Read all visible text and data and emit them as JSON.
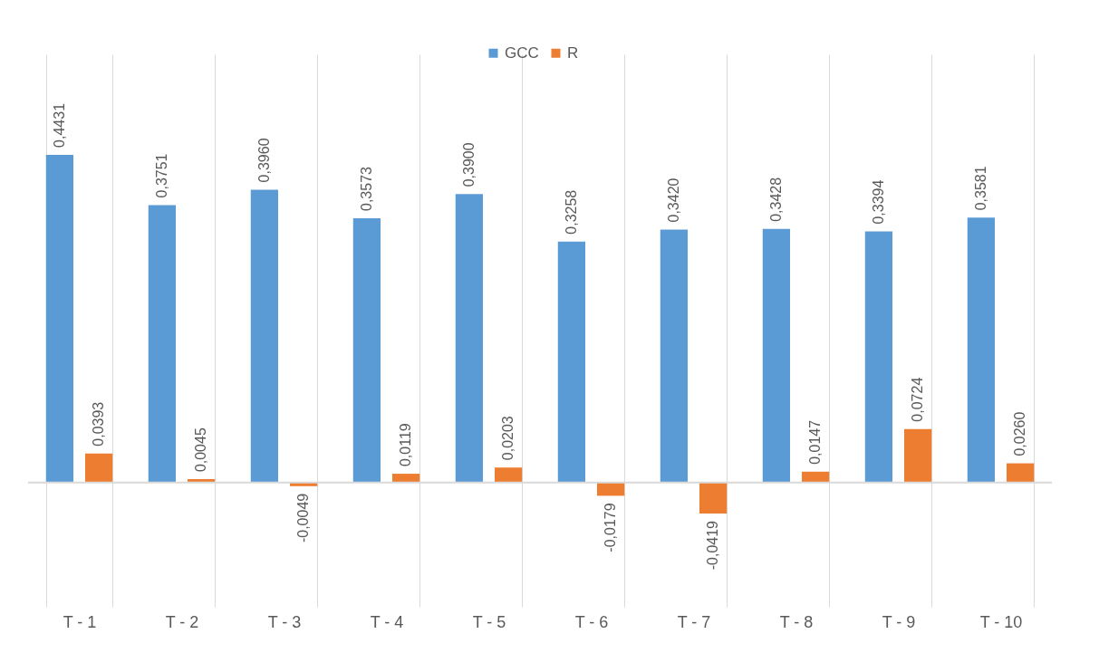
{
  "chart_data": {
    "type": "bar",
    "categories": [
      "T - 1",
      "T - 2",
      "T - 3",
      "T - 4",
      "T - 5",
      "T - 6",
      "T - 7",
      "T - 8",
      "T - 9",
      "T - 10"
    ],
    "series": [
      {
        "name": "GCC",
        "color": "#5b9bd5",
        "values": [
          0.4431,
          0.3751,
          0.396,
          0.3573,
          0.39,
          0.3258,
          0.342,
          0.3428,
          0.3394,
          0.3581
        ],
        "value_labels": [
          "0,4431",
          "0,3751",
          "0,3960",
          "0,3573",
          "0,3900",
          "0,3258",
          "0,3420",
          "0,3428",
          "0,3394",
          "0,3581"
        ]
      },
      {
        "name": "R",
        "color": "#ed7d31",
        "values": [
          0.0393,
          0.0045,
          -0.0049,
          0.0119,
          0.0203,
          -0.0179,
          -0.0419,
          0.0147,
          0.0724,
          0.026
        ],
        "value_labels": [
          "0,0393",
          "0,0045",
          "-0,0049",
          "0,0119",
          "0,0203",
          "-0,0179",
          "-0,0419",
          "0,0147",
          "0,0724",
          "0,0260"
        ]
      }
    ],
    "grid": "x",
    "legend": "top"
  }
}
